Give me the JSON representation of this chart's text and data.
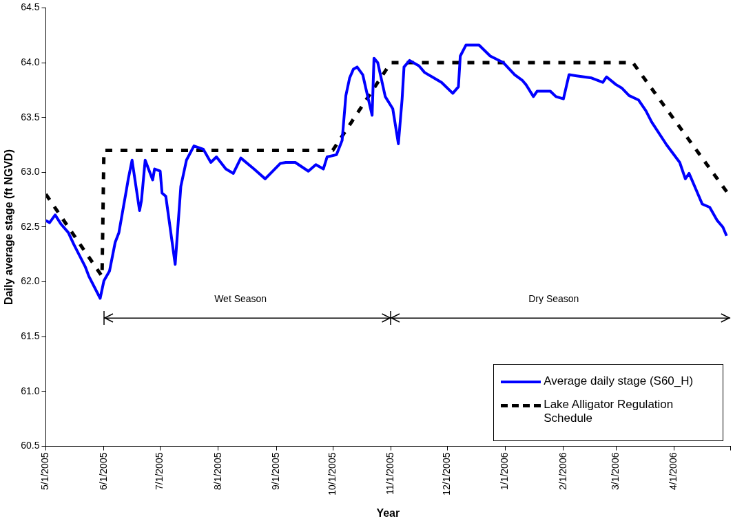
{
  "chart_data": {
    "type": "line",
    "xlabel": "Year",
    "ylabel": "Daily average stage (ft NGVD)",
    "xlim": [
      "2005-05-01",
      "2006-05-01"
    ],
    "xticks": [
      {
        "value": "2005-05-01",
        "label": "5/1/2005"
      },
      {
        "value": "2005-06-01",
        "label": "6/1/2005"
      },
      {
        "value": "2005-07-01",
        "label": "7/1/2005"
      },
      {
        "value": "2005-08-01",
        "label": "8/1/2005"
      },
      {
        "value": "2005-09-01",
        "label": "9/1/2005"
      },
      {
        "value": "2005-10-01",
        "label": "10/1/2005"
      },
      {
        "value": "2005-11-01",
        "label": "11/1/2005"
      },
      {
        "value": "2005-12-01",
        "label": "12/1/2005"
      },
      {
        "value": "2006-01-01",
        "label": "1/1/2006"
      },
      {
        "value": "2006-02-01",
        "label": "2/1/2006"
      },
      {
        "value": "2006-03-01",
        "label": "3/1/2006"
      },
      {
        "value": "2006-04-01",
        "label": "4/1/2006"
      },
      {
        "value": "2006-05-01",
        "label": null
      }
    ],
    "ylim": [
      60.5,
      64.5
    ],
    "yticks": [
      60.5,
      {
        "value": 61,
        "label": "61.0"
      },
      61.5,
      {
        "value": 62,
        "label": "62.0"
      },
      62.5,
      {
        "value": 63,
        "label": "63.0"
      },
      63.5,
      {
        "value": 64,
        "label": "64.0"
      },
      64.5
    ],
    "grid": false,
    "legend": "bottom right",
    "marker": "none",
    "annotations": [
      "Wet Season",
      "Dry Season"
    ],
    "series": [
      {
        "name": "Average daily stage (S60_H)",
        "color": "#0000ff",
        "line_style": "solid",
        "x": [
          "2005-05-01",
          "2005-05-03",
          "2005-05-06",
          "2005-05-09",
          "2005-05-13",
          "2005-05-16",
          "2005-05-19",
          "2005-05-22",
          "2005-05-24",
          "2005-05-30",
          "2005-06-01",
          "2005-06-04",
          "2005-06-07",
          "2005-06-09",
          "2005-06-13",
          "2005-06-14",
          "2005-06-16",
          "2005-06-20",
          "2005-06-21",
          "2005-06-23",
          "2005-06-27",
          "2005-06-28",
          "2005-07-01",
          "2005-07-02",
          "2005-07-04",
          "2005-07-09",
          "2005-07-12",
          "2005-07-15",
          "2005-07-19",
          "2005-07-24",
          "2005-07-28",
          "2005-07-31",
          "2005-08-05",
          "2005-08-09",
          "2005-08-13",
          "2005-08-20",
          "2005-08-26",
          "2005-09-03",
          "2005-09-06",
          "2005-09-11",
          "2005-09-18",
          "2005-09-22",
          "2005-09-26",
          "2005-09-28",
          "2005-10-03",
          "2005-10-06",
          "2005-10-08",
          "2005-10-10",
          "2005-10-12",
          "2005-10-14",
          "2005-10-17",
          "2005-10-19",
          "2005-10-22",
          "2005-10-23",
          "2005-10-25",
          "2005-10-29",
          "2005-11-02",
          "2005-11-05",
          "2005-11-07",
          "2005-11-08",
          "2005-11-11",
          "2005-11-16",
          "2005-11-19",
          "2005-11-23",
          "2005-11-28",
          "2005-12-04",
          "2005-12-07",
          "2005-12-08",
          "2005-12-11",
          "2005-12-15",
          "2005-12-18",
          "2005-12-24",
          "2005-12-31",
          "2006-01-06",
          "2006-01-10",
          "2006-01-12",
          "2006-01-16",
          "2006-01-18",
          "2006-01-25",
          "2006-01-28",
          "2006-02-01",
          "2006-02-04",
          "2006-02-08",
          "2006-02-16",
          "2006-02-22",
          "2006-02-24",
          "2006-03-01",
          "2006-03-04",
          "2006-03-08",
          "2006-03-13",
          "2006-03-17",
          "2006-03-20",
          "2006-03-28",
          "2006-04-04",
          "2006-04-07",
          "2006-04-09",
          "2006-04-16",
          "2006-04-20",
          "2006-04-24",
          "2006-04-27",
          "2006-04-29"
        ],
        "values": [
          62.56,
          62.54,
          62.61,
          62.53,
          62.45,
          62.34,
          62.24,
          62.14,
          62.05,
          61.85,
          62.01,
          62.1,
          62.36,
          62.45,
          62.84,
          62.94,
          63.11,
          62.65,
          62.74,
          63.11,
          62.93,
          63.03,
          63.01,
          62.81,
          62.78,
          62.16,
          62.87,
          63.11,
          63.24,
          63.21,
          63.09,
          63.14,
          63.03,
          62.99,
          63.13,
          63.03,
          62.94,
          63.08,
          63.09,
          63.09,
          63.01,
          63.07,
          63.03,
          63.14,
          63.16,
          63.29,
          63.7,
          63.86,
          63.94,
          63.96,
          63.89,
          63.74,
          63.52,
          64.04,
          64.0,
          63.69,
          63.58,
          63.26,
          63.67,
          63.96,
          64.02,
          63.97,
          63.91,
          63.87,
          63.82,
          63.72,
          63.78,
          64.06,
          64.16,
          64.16,
          64.16,
          64.06,
          64.0,
          63.89,
          63.84,
          63.8,
          63.69,
          63.74,
          63.74,
          63.69,
          63.67,
          63.89,
          63.88,
          63.86,
          63.82,
          63.87,
          63.8,
          63.77,
          63.7,
          63.66,
          63.56,
          63.46,
          63.25,
          63.09,
          62.94,
          62.99,
          62.71,
          62.68,
          62.56,
          62.5,
          62.42
        ]
      },
      {
        "name": "Lake Alligator Regulation Schedule",
        "color": "#000000",
        "line_style": "dashed",
        "x": [
          "2005-05-01",
          "2005-05-31",
          "2005-06-01",
          "2005-10-01",
          "2005-11-01",
          "2006-03-10",
          "2006-04-30"
        ],
        "values": [
          62.8,
          62.05,
          63.2,
          63.2,
          64.0,
          64.0,
          62.8
        ]
      },
      {
        "color": "#000000",
        "line_style": "solid",
        "x": [
          "2005-06-01",
          "2005-11-01",
          "2006-05-01"
        ],
        "values": [
          61.67,
          61.67,
          61.67
        ]
      }
    ]
  }
}
